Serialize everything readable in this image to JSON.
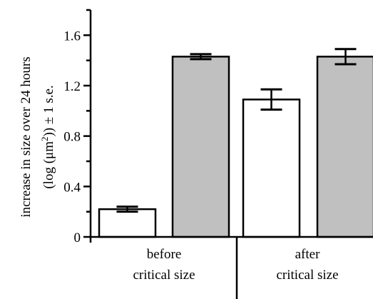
{
  "chart_data": {
    "type": "bar",
    "title": "",
    "xlabel": "",
    "ylabel_line1": "increase in size over 24 hours",
    "ylabel_line2_pre": "(log (μm",
    "ylabel_line2_sup": "2",
    "ylabel_line2_post": ")) ± 1 s.e.",
    "ylim": [
      0,
      1.8
    ],
    "yticks": [
      0,
      0.4,
      0.8,
      1.2,
      1.6
    ],
    "ytick_labels": [
      "0",
      "0.4",
      "0.8",
      "1.2",
      "1.6"
    ],
    "categories": [
      {
        "line1": "before",
        "line2": "critical size"
      },
      {
        "line1": "after",
        "line2": "critical size"
      }
    ],
    "series": [
      {
        "fill": "#ffffff",
        "values": [
          0.22,
          1.09
        ],
        "errors": [
          0.02,
          0.08
        ]
      },
      {
        "fill": "#c0c0c0",
        "values": [
          1.43,
          1.43
        ],
        "errors": [
          0.02,
          0.06
        ]
      }
    ],
    "grid": false,
    "legend": "none"
  }
}
